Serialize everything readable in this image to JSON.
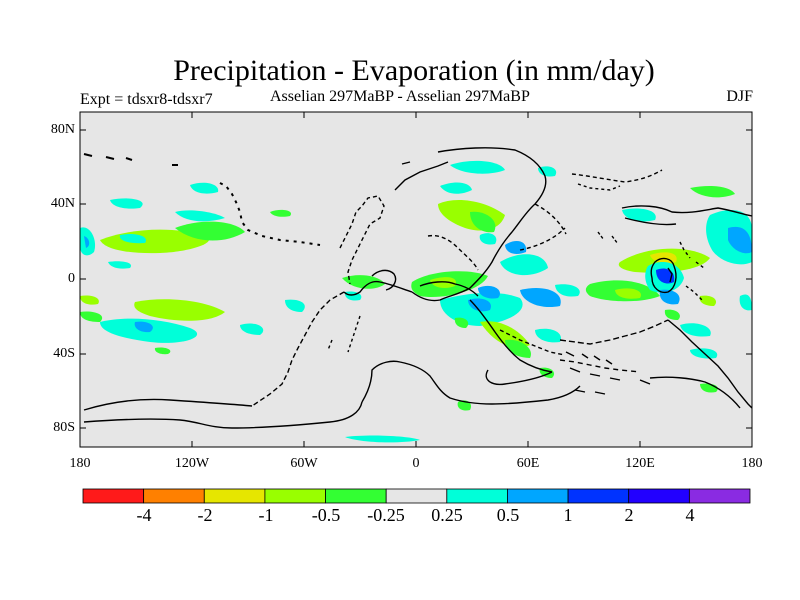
{
  "header": {
    "title": "Precipitation - Evaporation (in mm/day)",
    "left": "Expt = tdsxr8-tdsxr7",
    "center": "Asselian 297MaBP - Asselian 297MaBP",
    "right": "DJF"
  },
  "axes": {
    "lat_labels": [
      "80N",
      "40N",
      "0",
      "40S",
      "80S"
    ],
    "lon_labels": [
      "180",
      "120W",
      "60W",
      "0",
      "60E",
      "120E",
      "180"
    ]
  },
  "colorbar": {
    "labels": [
      "-4",
      "-2",
      "-1",
      "-0.5",
      "-0.25",
      "0.25",
      "0.5",
      "1",
      "2",
      "4"
    ],
    "colors": [
      "#ff1a1a",
      "#ff8000",
      "#e6e600",
      "#99ff00",
      "#33ff33",
      "#e6e6e6",
      "#00ffd9",
      "#00a6ff",
      "#0033ff",
      "#2200ff",
      "#8a2be2"
    ]
  },
  "colors": {
    "ocean_bg": "#e6e6e6",
    "coast": "#000000"
  }
}
